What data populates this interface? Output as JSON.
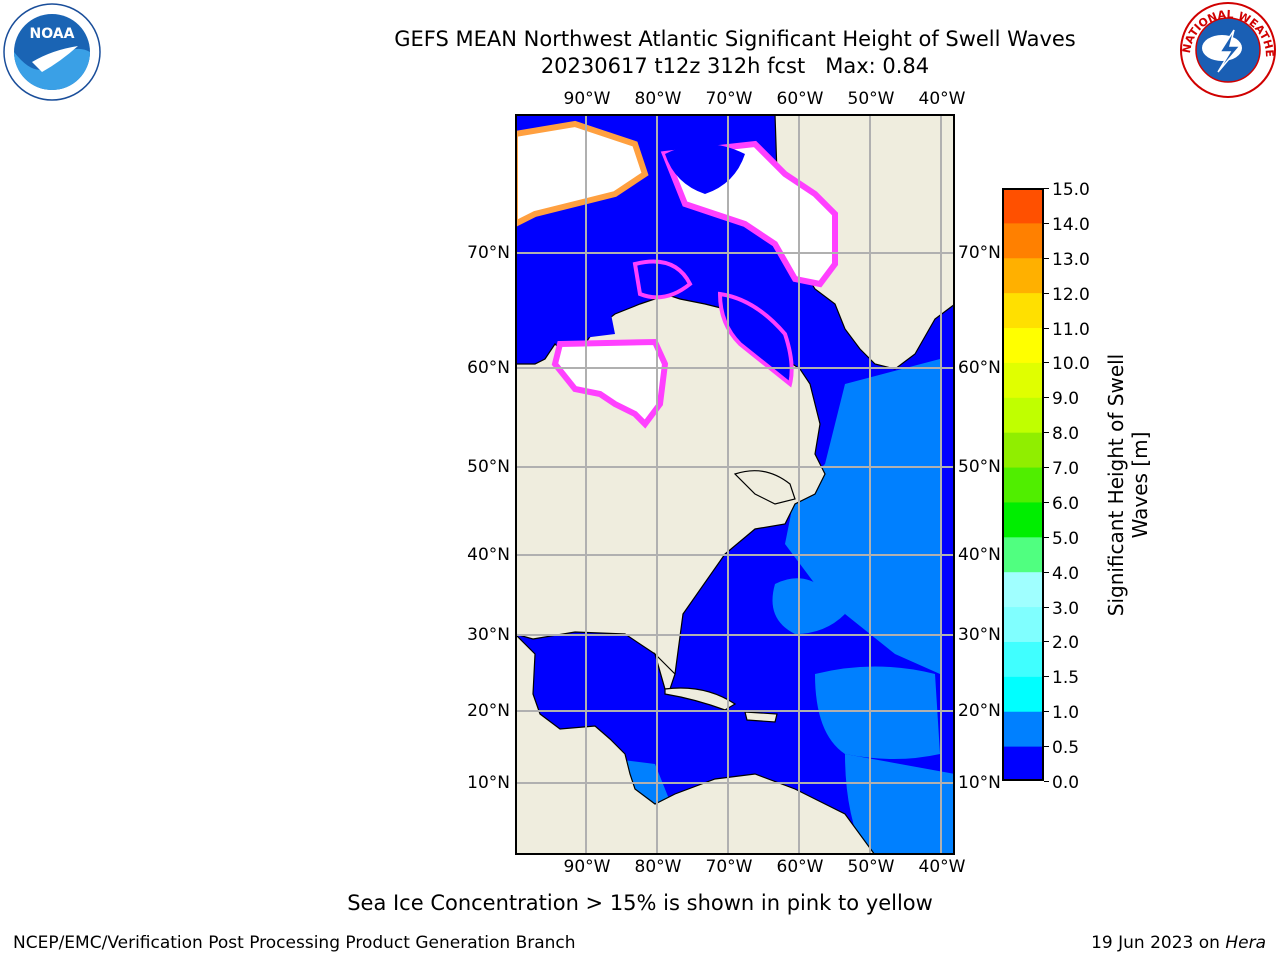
{
  "title": "GEFS MEAN Northwest Atlantic Significant Height of Swell Waves",
  "subtitle": "20230617 t12z 312h fcst   Max: 0.84",
  "lon_labels": [
    "90°W",
    "80°W",
    "70°W",
    "60°W",
    "50°W",
    "40°W"
  ],
  "lat_labels": [
    "70°N",
    "60°N",
    "50°N",
    "40°N",
    "30°N",
    "20°N",
    "10°N"
  ],
  "colorbar": {
    "label_line1": "Significant Height of Swell",
    "label_line2": "Waves [m]",
    "ticks": [
      "15.0",
      "14.0",
      "13.0",
      "12.0",
      "11.0",
      "10.0",
      "9.0",
      "8.0",
      "7.0",
      "6.0",
      "5.0",
      "4.0",
      "3.0",
      "2.0",
      "1.5",
      "1.0",
      "0.5",
      "0.0"
    ],
    "colors": [
      "#0000ff",
      "#0080ff",
      "#00ffff",
      "#40ffff",
      "#80ffff",
      "#a0ffff",
      "#50ff80",
      "#00ee00",
      "#50ee00",
      "#90ee00",
      "#c0ff00",
      "#e0ff00",
      "#ffff00",
      "#ffe000",
      "#ffb000",
      "#ff8000",
      "#ff5000",
      "#ff2000",
      "#ff0000"
    ]
  },
  "footnote": "Sea Ice Concentration > 15% is shown in pink to yellow",
  "footer_left": "NCEP/EMC/Verification Post Processing Product Generation Branch",
  "footer_right_prefix": "19 Jun 2023 on",
  "footer_right_machine": "Hera",
  "logos": {
    "noaa": "NOAA",
    "nws": "NATIONAL WEATHER SERVICE"
  },
  "colors": {
    "land": "#efedde",
    "ocean": "#0000ff",
    "ocean_light": "#0080ff",
    "ice_pink": "#ff40ff",
    "ice_orange": "#ffa040",
    "grid": "#b0b0b0"
  }
}
